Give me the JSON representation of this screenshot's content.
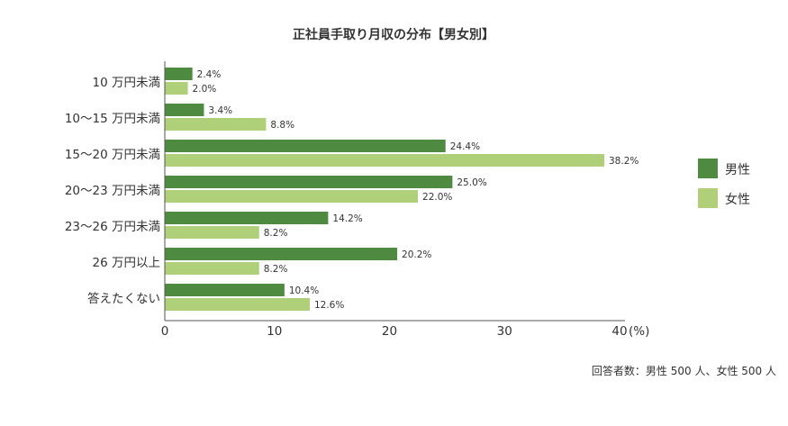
{
  "chart_data": {
    "type": "bar",
    "orientation": "horizontal",
    "title": "正社員手取り月収の分布【男女別】",
    "categories": [
      "10 万円未満",
      "10～15 万円未満",
      "15～20 万円未満",
      "20～23 万円未満",
      "23～26 万円未満",
      "26 万円以上",
      "答えたくない"
    ],
    "series": [
      {
        "name": "男性",
        "color": "#4e8a40",
        "values": [
          2.4,
          3.4,
          24.4,
          25.0,
          14.2,
          20.2,
          10.4
        ]
      },
      {
        "name": "女性",
        "color": "#afcf78",
        "values": [
          2.0,
          8.8,
          38.2,
          22.0,
          8.2,
          8.2,
          12.6
        ]
      }
    ],
    "value_labels_suffix": "%",
    "xlim": [
      0,
      40
    ],
    "xticks": [
      0,
      10,
      20,
      30,
      40
    ],
    "xunit": "(%)",
    "grid": false,
    "legend": "right",
    "note": "回答者数：男性 500 人、女性 500 人"
  }
}
